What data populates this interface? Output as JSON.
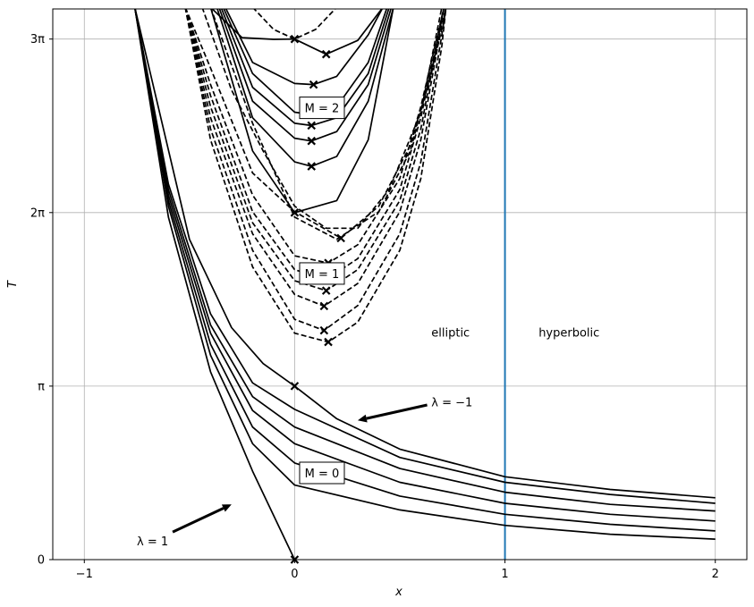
{
  "chart_data": {
    "type": "line",
    "xlabel": "x",
    "ylabel": "T",
    "xlim": [
      -1.15,
      2.15
    ],
    "ylim": [
      0,
      9.97
    ],
    "grid": true,
    "x_ticks": [
      {
        "value": -1,
        "label": "−1"
      },
      {
        "value": 0,
        "label": "0"
      },
      {
        "value": 1,
        "label": "1"
      },
      {
        "value": 2,
        "label": "2"
      }
    ],
    "y_ticks": [
      {
        "value": 0,
        "label": "0"
      },
      {
        "value": 3.14159,
        "label": "π"
      },
      {
        "value": 6.28319,
        "label": "2π"
      },
      {
        "value": 9.42478,
        "label": "3π"
      }
    ],
    "vertical_line": {
      "x": 1,
      "color": "#1f77b4"
    },
    "region_labels": [
      {
        "text": "elliptic",
        "x": 0.65,
        "y": 4.1
      },
      {
        "text": "hyperbolic",
        "x": 1.16,
        "y": 4.1
      }
    ],
    "annotations": [
      {
        "text": "λ = 1",
        "x": -0.75,
        "y": 0.32,
        "arrow_from": [
          -0.58,
          0.5
        ],
        "arrow_to": [
          -0.3,
          1.0
        ]
      },
      {
        "text": "λ = −1",
        "x": 0.65,
        "y": 2.84,
        "arrow_from": [
          0.63,
          2.8
        ],
        "arrow_to": [
          0.3,
          2.52
        ]
      }
    ],
    "boxed_labels": [
      {
        "text": "M = 0",
        "x": 0.13,
        "y": 1.57
      },
      {
        "text": "M = 1",
        "x": 0.13,
        "y": 5.18
      },
      {
        "text": "M = 2",
        "x": 0.13,
        "y": 8.18
      }
    ],
    "min_markers": [
      {
        "x": 0.0,
        "y": 0.0
      },
      {
        "x": 0.0,
        "y": 3.1416
      },
      {
        "x": 0.0,
        "y": 6.2832
      },
      {
        "x": 0.0,
        "y": 9.4248
      },
      {
        "x": 0.22,
        "y": 5.82
      },
      {
        "x": 0.16,
        "y": 5.37
      },
      {
        "x": 0.15,
        "y": 5.07
      },
      {
        "x": 0.15,
        "y": 4.87
      },
      {
        "x": 0.14,
        "y": 4.59
      },
      {
        "x": 0.14,
        "y": 4.15
      },
      {
        "x": 0.16,
        "y": 3.94
      },
      {
        "x": 0.08,
        "y": 7.12
      },
      {
        "x": 0.08,
        "y": 7.58
      },
      {
        "x": 0.08,
        "y": 7.86
      },
      {
        "x": 0.09,
        "y": 8.6
      },
      {
        "x": 0.15,
        "y": 9.15
      }
    ],
    "series": [
      {
        "group": "M=0",
        "dash": "solid",
        "points": [
          [
            -0.76,
            10
          ],
          [
            -0.6,
            6.2
          ],
          [
            -0.4,
            3.4
          ],
          [
            -0.2,
            1.6
          ],
          [
            0,
            0
          ]
        ]
      },
      {
        "group": "M=0",
        "dash": "solid",
        "points": [
          [
            -0.76,
            10
          ],
          [
            -0.6,
            6.4
          ],
          [
            -0.4,
            3.7
          ],
          [
            -0.2,
            2.1
          ],
          [
            0,
            1.35
          ],
          [
            0.5,
            0.9
          ],
          [
            1,
            0.62
          ],
          [
            1.5,
            0.46
          ],
          [
            2,
            0.37
          ]
        ]
      },
      {
        "group": "M=0",
        "dash": "solid",
        "points": [
          [
            -0.76,
            10
          ],
          [
            -0.6,
            6.5
          ],
          [
            -0.4,
            3.9
          ],
          [
            -0.2,
            2.4
          ],
          [
            0,
            1.75
          ],
          [
            0.5,
            1.15
          ],
          [
            1,
            0.82
          ],
          [
            1.5,
            0.64
          ],
          [
            2,
            0.52
          ]
        ]
      },
      {
        "group": "M=0",
        "dash": "solid",
        "points": [
          [
            -0.76,
            10
          ],
          [
            -0.6,
            6.6
          ],
          [
            -0.4,
            4.1
          ],
          [
            -0.2,
            2.7
          ],
          [
            0,
            2.1
          ],
          [
            0.5,
            1.4
          ],
          [
            1,
            1.02
          ],
          [
            1.5,
            0.82
          ],
          [
            2,
            0.7
          ]
        ]
      },
      {
        "group": "M=0",
        "dash": "solid",
        "points": [
          [
            -0.76,
            10
          ],
          [
            -0.6,
            6.7
          ],
          [
            -0.4,
            4.25
          ],
          [
            -0.2,
            2.95
          ],
          [
            0,
            2.4
          ],
          [
            0.5,
            1.65
          ],
          [
            1,
            1.22
          ],
          [
            1.5,
            1.0
          ],
          [
            2,
            0.88
          ]
        ]
      },
      {
        "group": "M=0",
        "dash": "solid",
        "points": [
          [
            -0.76,
            10
          ],
          [
            -0.6,
            6.8
          ],
          [
            -0.4,
            4.45
          ],
          [
            -0.2,
            3.2
          ],
          [
            0,
            2.72
          ],
          [
            0.5,
            1.85
          ],
          [
            1,
            1.4
          ],
          [
            1.5,
            1.18
          ],
          [
            2,
            1.02
          ]
        ]
      },
      {
        "group": "M=0",
        "dash": "solid",
        "points": [
          [
            -0.76,
            10
          ],
          [
            -0.5,
            5.8
          ],
          [
            -0.3,
            4.2
          ],
          [
            -0.15,
            3.55
          ],
          [
            0,
            3.1416
          ],
          [
            0.2,
            2.55
          ],
          [
            0.5,
            2.0
          ],
          [
            1,
            1.5
          ],
          [
            1.5,
            1.27
          ],
          [
            2,
            1.12
          ]
        ]
      },
      {
        "group": "M=1",
        "dash": "dashed",
        "points": [
          [
            -0.52,
            10
          ],
          [
            -0.4,
            7.6
          ],
          [
            -0.2,
            5.3
          ],
          [
            0,
            4.1
          ],
          [
            0.16,
            3.94
          ],
          [
            0.3,
            4.3
          ],
          [
            0.5,
            5.6
          ],
          [
            0.6,
            6.9
          ],
          [
            0.7,
            9.3
          ],
          [
            0.72,
            10
          ]
        ]
      },
      {
        "group": "M=1",
        "dash": "dashed",
        "points": [
          [
            -0.52,
            10
          ],
          [
            -0.4,
            7.8
          ],
          [
            -0.2,
            5.6
          ],
          [
            0,
            4.35
          ],
          [
            0.14,
            4.15
          ],
          [
            0.3,
            4.6
          ],
          [
            0.5,
            5.9
          ],
          [
            0.6,
            7.2
          ],
          [
            0.7,
            9.5
          ],
          [
            0.72,
            10
          ]
        ]
      },
      {
        "group": "M=1",
        "dash": "dashed",
        "points": [
          [
            -0.52,
            10
          ],
          [
            -0.4,
            8.0
          ],
          [
            -0.2,
            5.9
          ],
          [
            0,
            4.8
          ],
          [
            0.14,
            4.59
          ],
          [
            0.3,
            5.0
          ],
          [
            0.5,
            6.3
          ],
          [
            0.6,
            7.6
          ],
          [
            0.7,
            9.7
          ],
          [
            0.72,
            10
          ]
        ]
      },
      {
        "group": "M=1",
        "dash": "dashed",
        "points": [
          [
            -0.52,
            10
          ],
          [
            -0.4,
            8.2
          ],
          [
            -0.2,
            6.1
          ],
          [
            0,
            5.05
          ],
          [
            0.15,
            4.87
          ],
          [
            0.3,
            5.25
          ],
          [
            0.5,
            6.5
          ],
          [
            0.6,
            7.8
          ],
          [
            0.71,
            10
          ]
        ]
      },
      {
        "group": "M=1",
        "dash": "dashed",
        "points": [
          [
            -0.52,
            10
          ],
          [
            -0.4,
            8.4
          ],
          [
            -0.2,
            6.3
          ],
          [
            0,
            5.25
          ],
          [
            0.15,
            5.07
          ],
          [
            0.3,
            5.45
          ],
          [
            0.5,
            6.7
          ],
          [
            0.6,
            8.0
          ],
          [
            0.71,
            10
          ]
        ]
      },
      {
        "group": "M=1",
        "dash": "dashed",
        "points": [
          [
            -0.52,
            10
          ],
          [
            -0.4,
            8.6
          ],
          [
            -0.2,
            6.6
          ],
          [
            0,
            5.5
          ],
          [
            0.16,
            5.37
          ],
          [
            0.3,
            5.7
          ],
          [
            0.5,
            6.9
          ],
          [
            0.6,
            8.2
          ],
          [
            0.71,
            10
          ]
        ]
      },
      {
        "group": "M=1",
        "dash": "dashed",
        "points": [
          [
            -0.52,
            10
          ],
          [
            -0.4,
            8.9
          ],
          [
            -0.2,
            7.0
          ],
          [
            0,
            6.3
          ],
          [
            0.22,
            5.82
          ],
          [
            0.4,
            6.4
          ],
          [
            0.55,
            7.5
          ],
          [
            0.65,
            8.8
          ],
          [
            0.71,
            10
          ]
        ]
      },
      {
        "group": "M=1",
        "dash": "dashed",
        "points": [
          [
            -0.4,
            10
          ],
          [
            -0.2,
            7.9
          ],
          [
            0,
            6.2
          ],
          [
            0.2,
            5.8
          ],
          [
            0.4,
            6.3
          ],
          [
            0.55,
            7.4
          ],
          [
            0.7,
            9.6
          ],
          [
            0.72,
            10
          ]
        ]
      },
      {
        "group": "M=1",
        "dash": "dashed",
        "points": [
          [
            -0.44,
            10
          ],
          [
            -0.3,
            8.5
          ],
          [
            -0.15,
            7.4
          ],
          [
            0,
            6.4
          ],
          [
            0.15,
            6.0
          ],
          [
            0.3,
            6.0
          ],
          [
            0.45,
            6.7
          ],
          [
            0.6,
            8.1
          ],
          [
            0.7,
            10
          ]
        ]
      },
      {
        "group": "M=2",
        "dash": "solid",
        "points": [
          [
            -0.4,
            10
          ],
          [
            -0.2,
            7.4
          ],
          [
            0,
            6.2832
          ],
          [
            0.2,
            6.5
          ],
          [
            0.35,
            7.6
          ],
          [
            0.47,
            10
          ]
        ]
      },
      {
        "group": "M=2",
        "dash": "solid",
        "points": [
          [
            -0.37,
            10
          ],
          [
            -0.2,
            8.0
          ],
          [
            0,
            7.2
          ],
          [
            0.08,
            7.12
          ],
          [
            0.2,
            7.3
          ],
          [
            0.35,
            8.3
          ],
          [
            0.47,
            10
          ]
        ]
      },
      {
        "group": "M=2",
        "dash": "solid",
        "points": [
          [
            -0.36,
            10
          ],
          [
            -0.2,
            8.3
          ],
          [
            0,
            7.63
          ],
          [
            0.08,
            7.58
          ],
          [
            0.2,
            7.75
          ],
          [
            0.35,
            8.6
          ],
          [
            0.46,
            10
          ]
        ]
      },
      {
        "group": "M=2",
        "dash": "solid",
        "points": [
          [
            -0.35,
            10
          ],
          [
            -0.2,
            8.55
          ],
          [
            0,
            7.9
          ],
          [
            0.08,
            7.86
          ],
          [
            0.2,
            8.0
          ],
          [
            0.35,
            8.8
          ],
          [
            0.45,
            10
          ]
        ]
      },
      {
        "group": "M=2",
        "dash": "solid",
        "points": [
          [
            -0.34,
            10
          ],
          [
            -0.2,
            8.8
          ],
          [
            0,
            8.1
          ],
          [
            0.09,
            8.05
          ],
          [
            0.2,
            8.2
          ],
          [
            0.35,
            9.0
          ],
          [
            0.44,
            10
          ]
        ]
      },
      {
        "group": "M=2",
        "dash": "solid",
        "points": [
          [
            -0.33,
            10
          ],
          [
            -0.2,
            9.0
          ],
          [
            0,
            8.62
          ],
          [
            0.09,
            8.6
          ],
          [
            0.2,
            8.75
          ],
          [
            0.35,
            9.5
          ],
          [
            0.42,
            10
          ]
        ]
      },
      {
        "group": "M=2",
        "dash": "solid",
        "points": [
          [
            -0.4,
            10
          ],
          [
            -0.25,
            9.45
          ],
          [
            -0.1,
            9.42
          ],
          [
            0,
            9.4248
          ],
          [
            0.15,
            9.15
          ],
          [
            0.3,
            9.4
          ],
          [
            0.42,
            10
          ]
        ]
      },
      {
        "group": "M=3",
        "dash": "dashed",
        "points": [
          [
            -0.2,
            10
          ],
          [
            -0.1,
            9.6
          ],
          [
            0,
            9.4248
          ],
          [
            0.1,
            9.6
          ],
          [
            0.2,
            10
          ]
        ]
      }
    ]
  }
}
